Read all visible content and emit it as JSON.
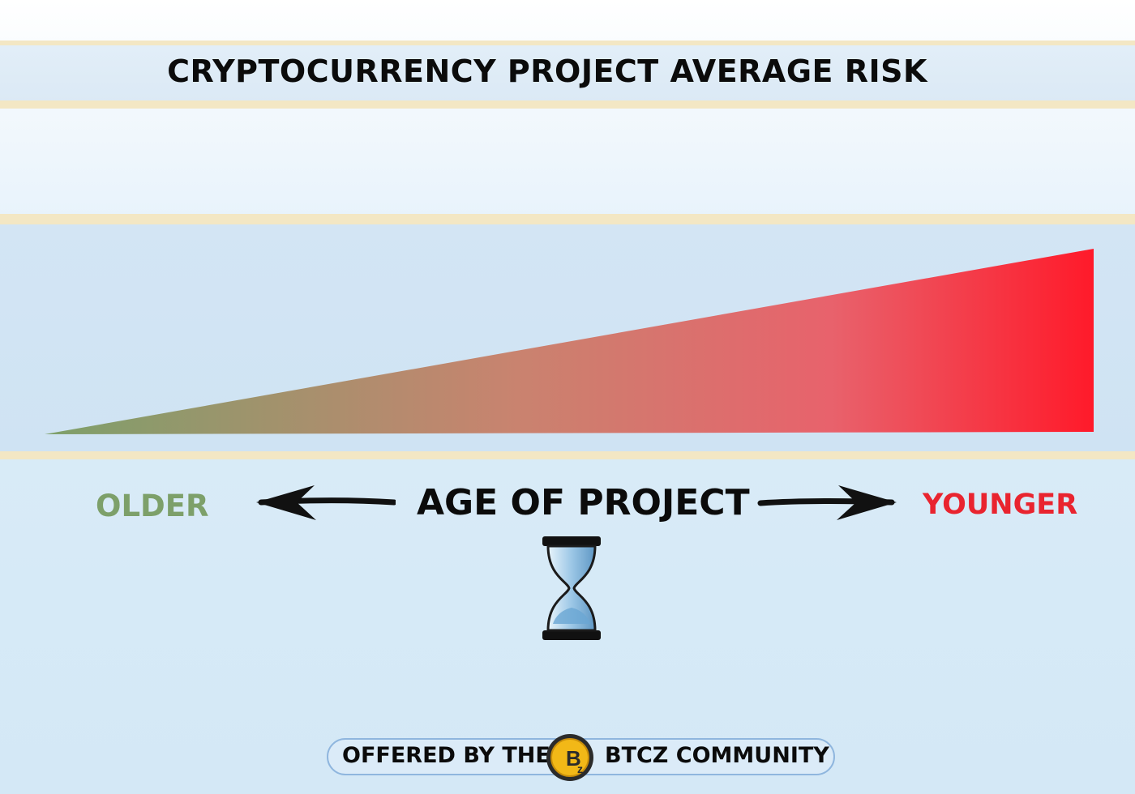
{
  "title": "CRYPTOCURRENCY PROJECT AVERAGE RISK",
  "axis": {
    "left_label": "OLDER",
    "center_label": "AGE OF PROJECT",
    "right_label": "YOUNGER"
  },
  "risk_wedge": {
    "low_risk_color": "#7da06a",
    "high_risk_color": "#ff1a2a",
    "direction": "risk increases from older to younger projects"
  },
  "footer": {
    "prefix": "OFFERED BY THE",
    "suffix": "BTCZ COMMUNITY",
    "logo_letter": "B",
    "logo_sub": "z"
  },
  "icons": {
    "left_arrow": "arrow-left-icon",
    "right_arrow": "arrow-right-icon",
    "hourglass": "hourglass-icon",
    "logo": "btcz-logo-icon"
  }
}
